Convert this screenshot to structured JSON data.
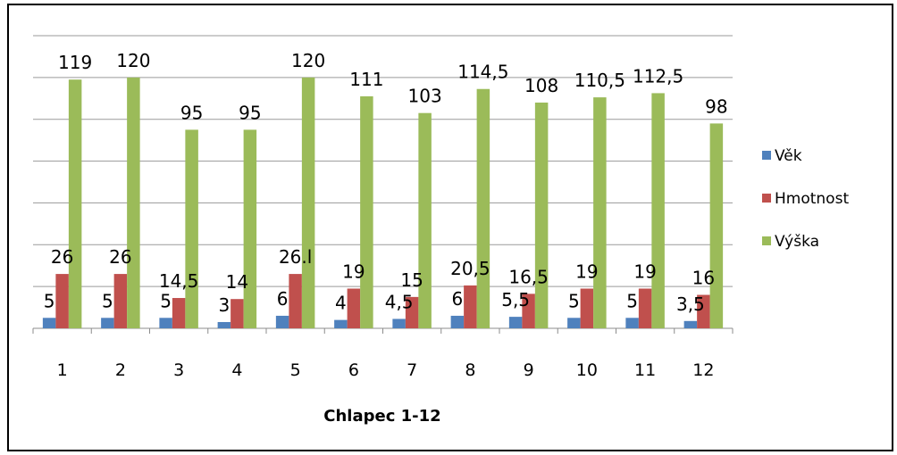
{
  "chart_data": {
    "type": "bar",
    "title": "",
    "xlabel": "Chlapec 1-12",
    "ylabel": "",
    "ylim": [
      0,
      140
    ],
    "grid": true,
    "legend_position": "right",
    "categories": [
      "1",
      "2",
      "3",
      "4",
      "5",
      "6",
      "7",
      "8",
      "9",
      "10",
      "11",
      "12"
    ],
    "series": [
      {
        "name": "Věk",
        "color": "#4f81bd",
        "values": [
          5,
          5,
          5,
          3,
          6,
          4,
          4.5,
          6,
          5.5,
          5,
          5,
          3.5
        ],
        "labels": [
          "5",
          "5",
          "5",
          "3",
          "6",
          "4",
          "4,5",
          "6",
          "5,5",
          "5",
          "5",
          "3,5"
        ]
      },
      {
        "name": "Hmotnost",
        "color": "#c0504d",
        "values": [
          26,
          26,
          14.5,
          14,
          26,
          19,
          15,
          20.5,
          16.5,
          19,
          19,
          16
        ],
        "labels": [
          "26",
          "26",
          "14,5",
          "14",
          "26.l",
          "19",
          "15",
          "20,5",
          "16,5",
          "19",
          "19",
          "16"
        ]
      },
      {
        "name": "Výška",
        "color": "#9bbb59",
        "values": [
          119,
          120,
          95,
          95,
          120,
          111,
          103,
          114.5,
          108,
          110.5,
          112.5,
          98
        ],
        "labels": [
          "119",
          "120",
          "95",
          "95",
          "120",
          "111",
          "103",
          "114,5",
          "108",
          "110,5",
          "112,5",
          "98"
        ]
      }
    ]
  }
}
